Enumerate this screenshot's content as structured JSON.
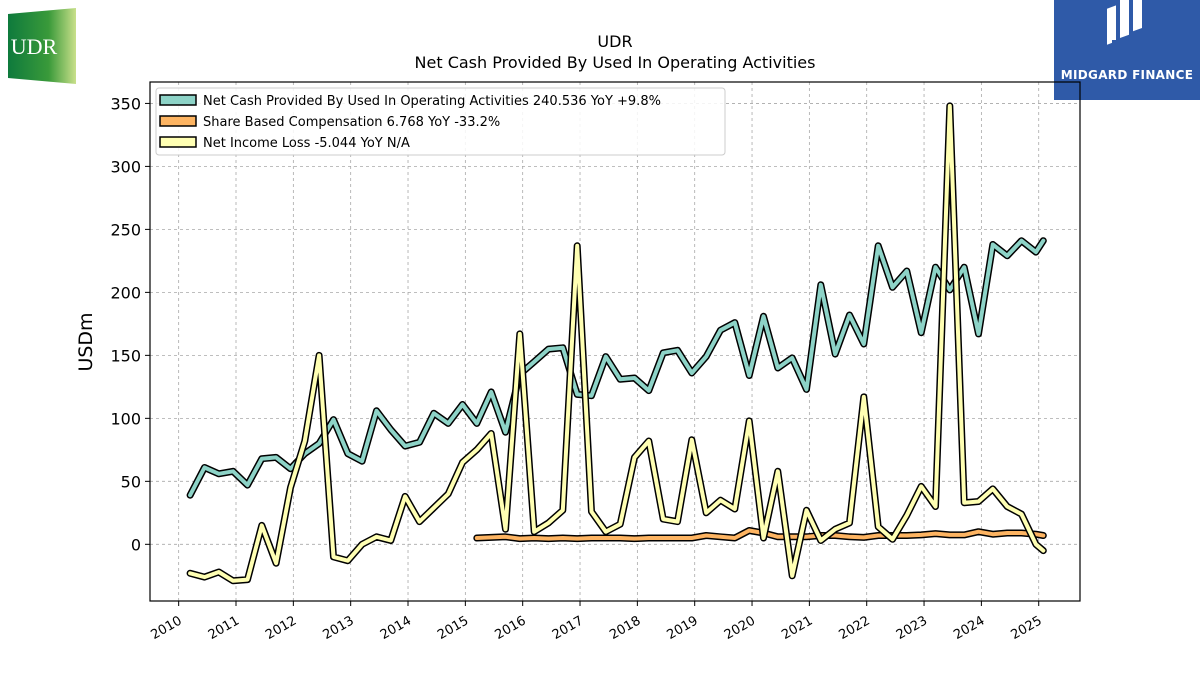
{
  "company": "UDR",
  "watermark": "MIDGARD FINANCE",
  "chart_data": {
    "type": "line",
    "title": "UDR",
    "subtitle": "Net Cash Provided By Used In Operating Activities",
    "ylabel": "USDm",
    "xlabel": "",
    "ylim": [
      -45,
      367
    ],
    "xlim": [
      2009.5,
      2025.72
    ],
    "yticks": [
      0,
      50,
      100,
      150,
      200,
      250,
      300,
      350
    ],
    "xticks": [
      2010,
      2011,
      2012,
      2013,
      2014,
      2015,
      2016,
      2017,
      2018,
      2019,
      2020,
      2021,
      2022,
      2023,
      2024,
      2025
    ],
    "grid": true,
    "legend_position": "top-left",
    "series": [
      {
        "name": "Net Cash Provided By Used In Operating Activities  240.536 YoY +9.8%",
        "color": "#8dd3c7",
        "x": [
          2010.2,
          2010.45,
          2010.7,
          2010.95,
          2011.2,
          2011.45,
          2011.7,
          2011.95,
          2012.2,
          2012.45,
          2012.7,
          2012.95,
          2013.2,
          2013.45,
          2013.7,
          2013.95,
          2014.2,
          2014.45,
          2014.7,
          2014.95,
          2015.2,
          2015.45,
          2015.7,
          2015.95,
          2016.2,
          2016.45,
          2016.7,
          2016.95,
          2017.2,
          2017.45,
          2017.7,
          2017.95,
          2018.2,
          2018.45,
          2018.7,
          2018.95,
          2019.2,
          2019.45,
          2019.7,
          2019.95,
          2020.2,
          2020.45,
          2020.7,
          2020.95,
          2021.2,
          2021.45,
          2021.7,
          2021.95,
          2022.2,
          2022.45,
          2022.7,
          2022.95,
          2023.2,
          2023.45,
          2023.7,
          2023.95,
          2024.2,
          2024.45,
          2024.7,
          2024.95,
          2025.08
        ],
        "values": [
          39,
          61,
          56,
          58,
          47,
          68,
          69,
          60,
          72,
          80,
          99,
          72,
          66,
          106,
          91,
          78,
          81,
          104,
          96,
          111,
          96,
          121,
          89,
          135,
          145,
          155,
          156,
          119,
          118,
          149,
          131,
          132,
          122,
          152,
          154,
          136,
          149,
          170,
          176,
          134,
          181,
          140,
          148,
          123,
          206,
          151,
          182,
          159,
          237,
          204,
          217,
          168,
          220,
          202,
          220,
          167,
          238,
          229,
          241,
          232,
          241
        ]
      },
      {
        "name": "Share Based Compensation  6.768 YoY -33.2%",
        "color": "#fdb462",
        "x": [
          2015.2,
          2015.45,
          2015.7,
          2015.95,
          2016.2,
          2016.45,
          2016.7,
          2016.95,
          2017.2,
          2017.45,
          2017.7,
          2017.95,
          2018.2,
          2018.45,
          2018.7,
          2018.95,
          2019.2,
          2019.45,
          2019.7,
          2019.95,
          2020.2,
          2020.45,
          2020.7,
          2020.95,
          2021.2,
          2021.45,
          2021.7,
          2021.95,
          2022.2,
          2022.45,
          2022.7,
          2022.95,
          2023.2,
          2023.45,
          2023.7,
          2023.95,
          2024.2,
          2024.45,
          2024.7,
          2024.95,
          2025.08
        ],
        "values": [
          5,
          5.5,
          6,
          4.5,
          5,
          4.5,
          5,
          4.5,
          5,
          5,
          5,
          4.5,
          5,
          5,
          5,
          5,
          7,
          6,
          5,
          11,
          9,
          6,
          6,
          6,
          7,
          7,
          6,
          5.5,
          7,
          7,
          7,
          7.5,
          8.5,
          7.5,
          7.5,
          10,
          8,
          9,
          9,
          8,
          7
        ]
      },
      {
        "name": "Net Income Loss  -5.044 YoY N/A",
        "color": "#ffffb3",
        "x": [
          2010.2,
          2010.45,
          2010.7,
          2010.95,
          2011.2,
          2011.45,
          2011.7,
          2011.95,
          2012.2,
          2012.45,
          2012.7,
          2012.95,
          2013.2,
          2013.45,
          2013.7,
          2013.95,
          2014.2,
          2014.45,
          2014.7,
          2014.95,
          2015.2,
          2015.45,
          2015.7,
          2015.95,
          2016.2,
          2016.45,
          2016.7,
          2016.95,
          2017.2,
          2017.45,
          2017.7,
          2017.95,
          2018.2,
          2018.45,
          2018.7,
          2018.95,
          2019.2,
          2019.45,
          2019.7,
          2019.95,
          2020.2,
          2020.45,
          2020.7,
          2020.95,
          2021.2,
          2021.45,
          2021.7,
          2021.95,
          2022.2,
          2022.45,
          2022.7,
          2022.95,
          2023.2,
          2023.45,
          2023.7,
          2023.95,
          2024.2,
          2024.45,
          2024.7,
          2024.95,
          2025.08
        ],
        "values": [
          -23,
          -26,
          -22,
          -29,
          -28,
          15,
          -15,
          45,
          82,
          150,
          -10,
          -13,
          0,
          6,
          3,
          38,
          18,
          29,
          40,
          65,
          75,
          88,
          12,
          167,
          10,
          17,
          27,
          237,
          26,
          10,
          16,
          69,
          82,
          20,
          18,
          83,
          25,
          35,
          28,
          98,
          5,
          58,
          -25,
          27,
          3,
          12,
          17,
          117,
          14,
          4,
          23,
          46,
          30,
          348,
          33,
          34,
          44,
          30,
          24,
          0,
          -5
        ]
      }
    ]
  }
}
